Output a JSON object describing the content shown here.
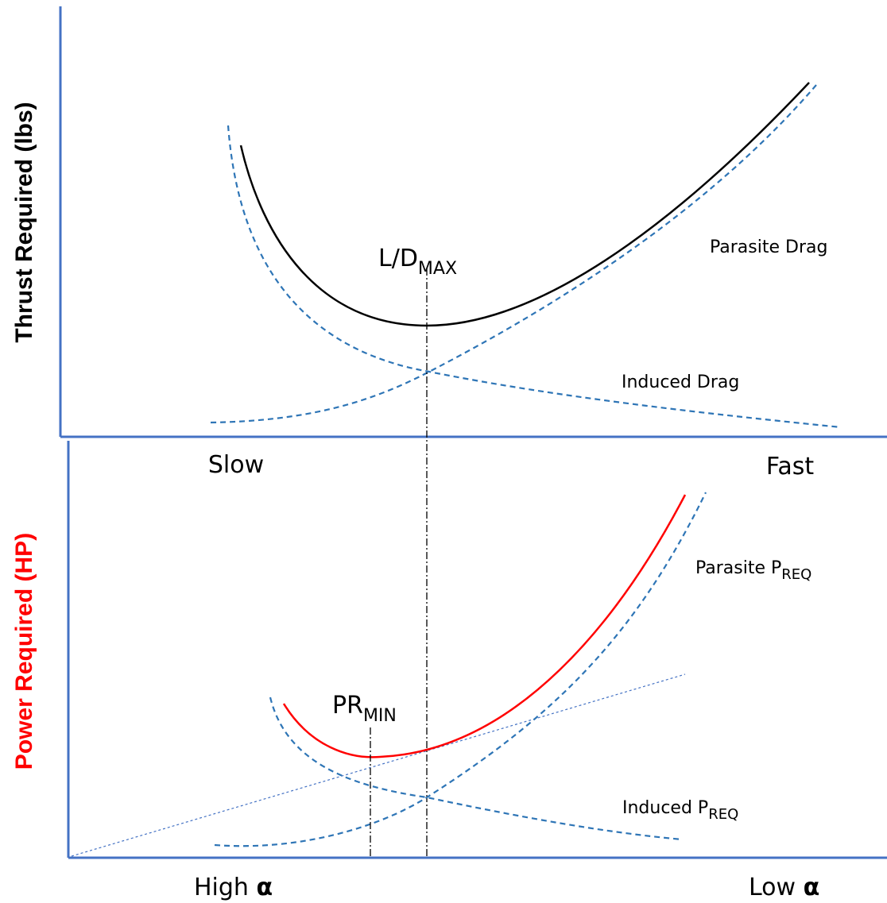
{
  "chart_data": [
    {
      "type": "line",
      "ylabel": "Thrust Required (lbs)",
      "x_left_label": "Slow",
      "x_right_label": "Fast",
      "marker": {
        "main": "L/D",
        "sub": "MAX"
      },
      "labels": {
        "parasite": {
          "main": "Parasite Drag",
          "sub": ""
        },
        "induced": {
          "main": "Induced Drag",
          "sub": ""
        }
      },
      "colors": {
        "axis": "#4472C4",
        "total": "#000000",
        "component": "#2E75B6",
        "ylabel": "#000000"
      }
    },
    {
      "type": "line",
      "ylabel": "Power Required (HP)",
      "x_left_label": "High",
      "x_right_label": "Low",
      "x_symbol": "α",
      "markers": [
        {
          "main": "PR",
          "sub": "MIN"
        }
      ],
      "labels": {
        "parasite": {
          "main": "Parasite P",
          "sub": "REQ"
        },
        "induced": {
          "main": "Induced P",
          "sub": "REQ"
        }
      },
      "colors": {
        "axis": "#4472C4",
        "total": "#FF0000",
        "component": "#2E75B6",
        "ylabel": "#FF0000"
      }
    }
  ]
}
